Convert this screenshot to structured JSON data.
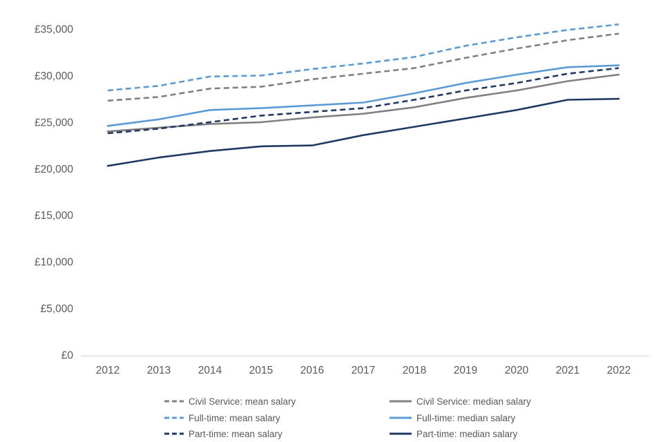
{
  "chart_data": {
    "type": "line",
    "x": [
      2012,
      2013,
      2014,
      2015,
      2016,
      2017,
      2018,
      2019,
      2020,
      2021,
      2022
    ],
    "x_labels": [
      "2012",
      "2013",
      "2014",
      "2015",
      "2016",
      "2017",
      "2018",
      "2019",
      "2020",
      "2021",
      "2022"
    ],
    "series": [
      {
        "name": "Civil Service: mean salary",
        "color": "#808080",
        "dash": true,
        "values": [
          27300,
          27700,
          28600,
          28800,
          29600,
          30200,
          30800,
          31900,
          32900,
          33800,
          34500
        ]
      },
      {
        "name": "Civil Service: median salary",
        "color": "#808080",
        "dash": false,
        "values": [
          24000,
          24400,
          24800,
          25000,
          25500,
          25900,
          26600,
          27600,
          28400,
          29400,
          30100
        ]
      },
      {
        "name": "Full-time: mean salary",
        "color": "#5B9BD5",
        "dash": true,
        "values": [
          28400,
          28900,
          29900,
          30000,
          30700,
          31300,
          32000,
          33200,
          34100,
          34900,
          35500
        ]
      },
      {
        "name": "Full-time: median salary",
        "color": "#5B9BD5",
        "dash": false,
        "values": [
          24600,
          25300,
          26300,
          26500,
          26800,
          27100,
          28100,
          29200,
          30100,
          30900,
          31100
        ]
      },
      {
        "name": "Part-time: mean salary",
        "color": "#1F3864",
        "dash": true,
        "values": [
          23800,
          24300,
          25000,
          25700,
          26100,
          26500,
          27400,
          28400,
          29200,
          30200,
          30800
        ]
      },
      {
        "name": "Part-time: median salary",
        "color": "#1F3864",
        "dash": false,
        "values": [
          20300,
          21200,
          21900,
          22400,
          22500,
          23600,
          24500,
          25400,
          26300,
          27400,
          27500
        ]
      }
    ],
    "title": "",
    "xlabel": "",
    "ylabel": "",
    "ylim": [
      0,
      35000
    ],
    "ytick_step": 5000,
    "ytick_labels": [
      "£0",
      "£5,000",
      "£10,000",
      "£15,000",
      "£20,000",
      "£25,000",
      "£30,000",
      "£35,000"
    ],
    "grid": false,
    "legend_position": "bottom",
    "axis_text_color": "#595959",
    "axis_line_color": "#D9D9D9"
  }
}
